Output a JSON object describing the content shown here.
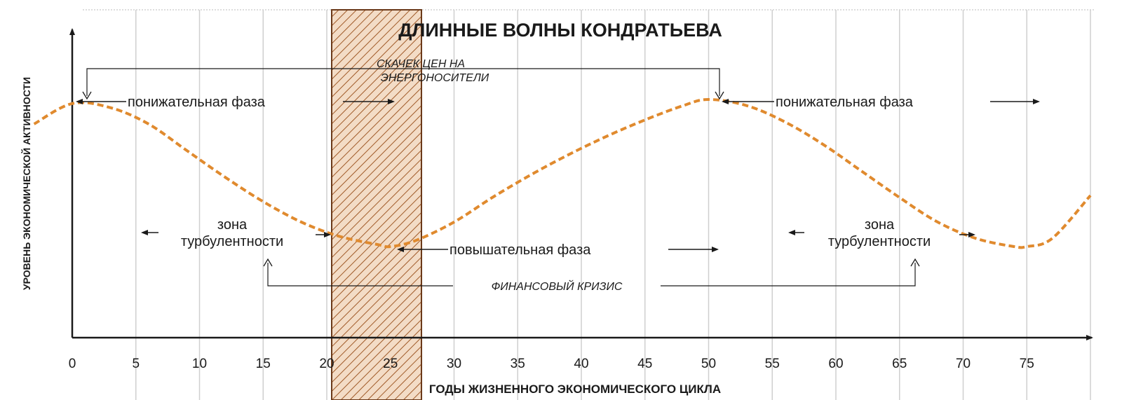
{
  "title": "ДЛИННЫЕ ВОЛНЫ КОНДРАТЬЕВА",
  "y_axis_label": "УРОВЕНЬ ЭКОНОМИЧЕСКОЙ АКТИВНОСТИ",
  "x_axis_label": "ГОДЫ ЖИЗНЕННОГО ЭКОНОМИЧЕСКОГО ЦИКЛА",
  "x_ticks": [
    "0",
    "5",
    "10",
    "15",
    "20",
    "25",
    "30",
    "35",
    "40",
    "45",
    "50",
    "55",
    "60",
    "65",
    "70",
    "75"
  ],
  "labels": {
    "energy_jump_line1": "СКАЧЕК ЦЕН НА",
    "energy_jump_line2": "ЭНЕРГОНОСИТЕЛИ",
    "down_phase_1": "понижательная фаза",
    "down_phase_2": "понижательная фаза",
    "up_phase": "повышательная фаза",
    "turbulence_1_line1": "зона",
    "turbulence_1_line2": "турбулентности",
    "turbulence_2_line1": "зона",
    "turbulence_2_line2": "турбулентности",
    "financial_crisis": "ФИНАНСОВЫЙ КРИЗИС"
  },
  "colors": {
    "curve": "#e08a2e",
    "hatch_fill": "#f3dcc6",
    "hatch_line": "#a05a28",
    "axis": "#1a1a1a"
  },
  "chart_data": {
    "type": "line",
    "xlim": [
      0,
      80
    ],
    "x_ticks": [
      0,
      5,
      10,
      15,
      20,
      25,
      30,
      35,
      40,
      45,
      50,
      55,
      60,
      65,
      70,
      75
    ],
    "series": [
      {
        "x": [
          -3,
          0,
          3,
          6,
          9,
          12,
          15,
          18,
          21,
          24,
          25,
          27,
          30,
          33,
          36,
          39,
          42,
          45,
          48,
          50,
          53,
          56,
          59,
          62,
          65,
          68,
          71,
          74,
          75,
          77,
          80
        ],
        "y": [
          0.88,
          0.98,
          0.96,
          0.88,
          0.75,
          0.62,
          0.5,
          0.4,
          0.33,
          0.29,
          0.28,
          0.31,
          0.4,
          0.52,
          0.63,
          0.73,
          0.82,
          0.9,
          0.97,
          1.0,
          0.97,
          0.89,
          0.78,
          0.65,
          0.52,
          0.4,
          0.32,
          0.28,
          0.28,
          0.32,
          0.53
        ]
      }
    ],
    "highlight_band": [
      20,
      27
    ]
  }
}
